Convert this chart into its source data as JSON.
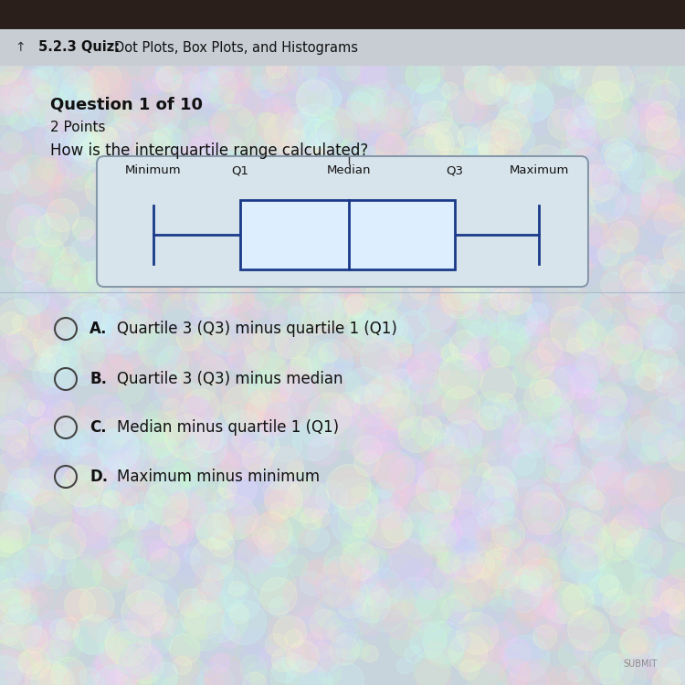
{
  "title_dark_bg": "#2a1f1a",
  "title_bar_bg": "#c8cdd4",
  "background_color": "#c8d4dc",
  "question_bold": "Question 1 of 10",
  "question_points": "2 Points",
  "question_text": "How is the interquartile range calculated?",
  "box_labels": [
    "Minimum",
    "Q1",
    "Median",
    "Q3",
    "Maximum"
  ],
  "box_outline_color": "#1a3a8a",
  "box_fill_color": "#ddeeff",
  "whisker_color": "#1a3a8a",
  "container_bg": "#d8e4ec",
  "container_border": "#8899aa",
  "answer_options": [
    {
      "letter": "A.",
      "text": "Quartile 3 (Q3) minus quartile 1 (Q1)"
    },
    {
      "letter": "B.",
      "text": "Quartile 3 (Q3) minus median"
    },
    {
      "letter": "C.",
      "text": "Median minus quartile 1 (Q1)"
    },
    {
      "letter": "D.",
      "text": "Maximum minus minimum"
    }
  ],
  "circle_color": "#444444",
  "text_color": "#111111"
}
